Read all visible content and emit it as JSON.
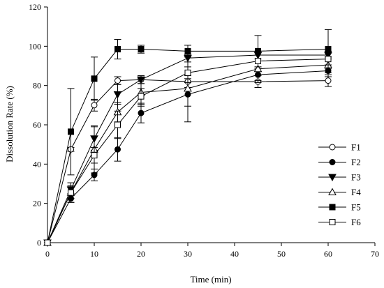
{
  "chart_data": {
    "type": "line",
    "title": "",
    "xlabel": "Time (min)",
    "ylabel": "Dissolution Rate (%)",
    "xlim": [
      0,
      70
    ],
    "ylim": [
      0,
      120
    ],
    "xticks": [
      "0",
      "10",
      "20",
      "30",
      "40",
      "50",
      "60",
      "70"
    ],
    "yticks": [
      "0",
      "20",
      "40",
      "60",
      "80",
      "100",
      "120"
    ],
    "grid": false,
    "legend_position": "right",
    "x": [
      0,
      5,
      10,
      15,
      20,
      30,
      45,
      60
    ],
    "series": [
      {
        "name": "F1",
        "marker": "open-circle",
        "values": [
          0,
          47.5,
          70,
          82.5,
          83,
          82,
          82,
          82.5
        ],
        "errors": [
          0,
          1,
          3,
          2,
          2,
          3,
          3,
          3
        ]
      },
      {
        "name": "F2",
        "marker": "filled-circle",
        "values": [
          0,
          22.5,
          34.5,
          47.5,
          66,
          75.5,
          85.5,
          87.5
        ],
        "errors": [
          0,
          2,
          3,
          6,
          5,
          6,
          3,
          3
        ]
      },
      {
        "name": "F3",
        "marker": "filled-triangle-down",
        "values": [
          0,
          27,
          53,
          75.5,
          83,
          94,
          95.5,
          95.5
        ],
        "errors": [
          0,
          2,
          6,
          5,
          2,
          2,
          2,
          2
        ]
      },
      {
        "name": "F4",
        "marker": "open-triangle-up",
        "values": [
          0,
          25.5,
          47.5,
          66.5,
          76.5,
          78.5,
          88.5,
          90.5
        ],
        "errors": [
          0,
          5,
          12,
          5,
          7,
          17,
          7,
          4
        ]
      },
      {
        "name": "F5",
        "marker": "filled-square",
        "values": [
          0,
          56.5,
          83.5,
          98.5,
          98.5,
          97.5,
          97.5,
          98.5
        ],
        "errors": [
          0,
          22,
          11,
          5,
          2,
          3,
          8,
          10
        ]
      },
      {
        "name": "F6",
        "marker": "open-square",
        "values": [
          0,
          25.5,
          44.5,
          60,
          74.5,
          86.5,
          92.5,
          93.5
        ],
        "errors": [
          0,
          3,
          4,
          7,
          4,
          3,
          3,
          3
        ]
      }
    ]
  }
}
